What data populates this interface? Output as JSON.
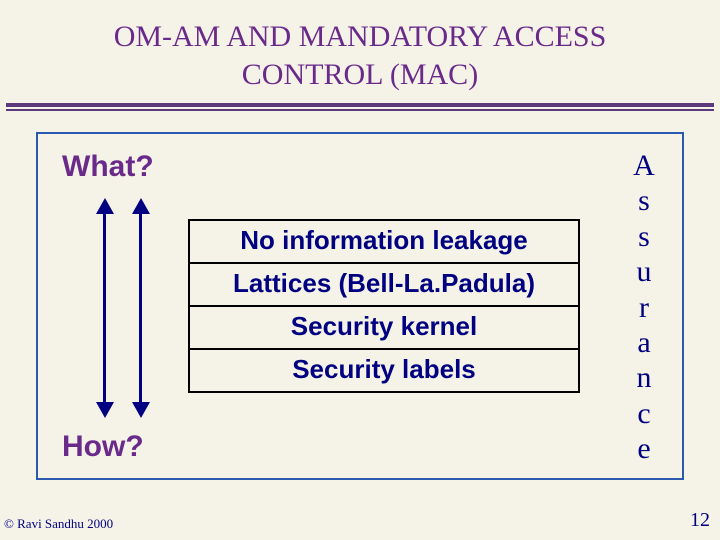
{
  "title": {
    "text_line1": "OM-AM AND MANDATORY ACCESS",
    "text_line2": "CONTROL (MAC)",
    "color": "#6a2a8a",
    "fontsize": 30
  },
  "rules": {
    "color": "#5a3a7a"
  },
  "box": {
    "border_color": "#2a59b0"
  },
  "labels": {
    "what": "What?",
    "how": "How?",
    "what_color": "#6a2a8a",
    "how_color": "#6a2a8a",
    "fontsize": 30
  },
  "arrows": {
    "color": "#000080"
  },
  "layers": {
    "rows": [
      "No information leakage",
      "Lattices (Bell-La.Padula)",
      "Security kernel",
      "Security labels"
    ],
    "text_color": "#000080",
    "border_color": "#000000",
    "fontsize": 26
  },
  "assurance": {
    "letters": [
      "A",
      "s",
      "s",
      "u",
      "r",
      "a",
      "n",
      "c",
      "e"
    ],
    "color": "#000080",
    "fontsize": 30
  },
  "footer": {
    "copyright": "© Ravi Sandhu 2000",
    "page_number": "12",
    "copyright_color": "#000080",
    "pagenum_color": "#000080"
  },
  "background_color": "#f5f3e8"
}
